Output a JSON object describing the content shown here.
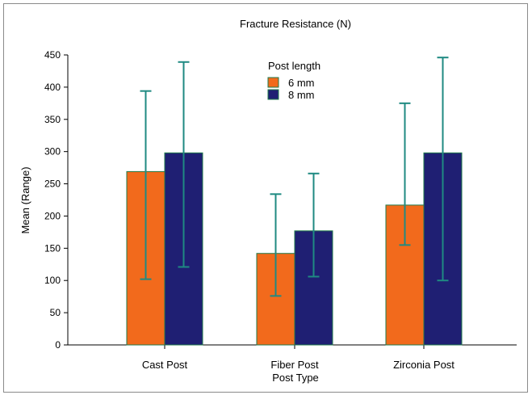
{
  "chart_data": {
    "type": "bar",
    "title": "Fracture Resistance (N)",
    "xlabel": "Post Type",
    "ylabel": "Mean (Range)",
    "categories": [
      "Cast Post",
      "Fiber Post",
      "Zirconia Post"
    ],
    "ylim": [
      0,
      450
    ],
    "yticks": [
      0,
      50,
      100,
      150,
      200,
      250,
      300,
      350,
      400,
      450
    ],
    "grid": false,
    "legend": {
      "title": "Post length",
      "position": "top-center"
    },
    "error_bar_color": "#1f8a82",
    "series": [
      {
        "name": "6 mm",
        "color": "#f26a1c",
        "values": [
          269,
          142,
          217
        ],
        "range": [
          [
            102,
            394
          ],
          [
            76,
            234
          ],
          [
            155,
            375
          ]
        ]
      },
      {
        "name": "8 mm",
        "color": "#1f1f73",
        "values": [
          298,
          177,
          298
        ],
        "range": [
          [
            121,
            439
          ],
          [
            106,
            266
          ],
          [
            100,
            446
          ]
        ]
      }
    ]
  }
}
